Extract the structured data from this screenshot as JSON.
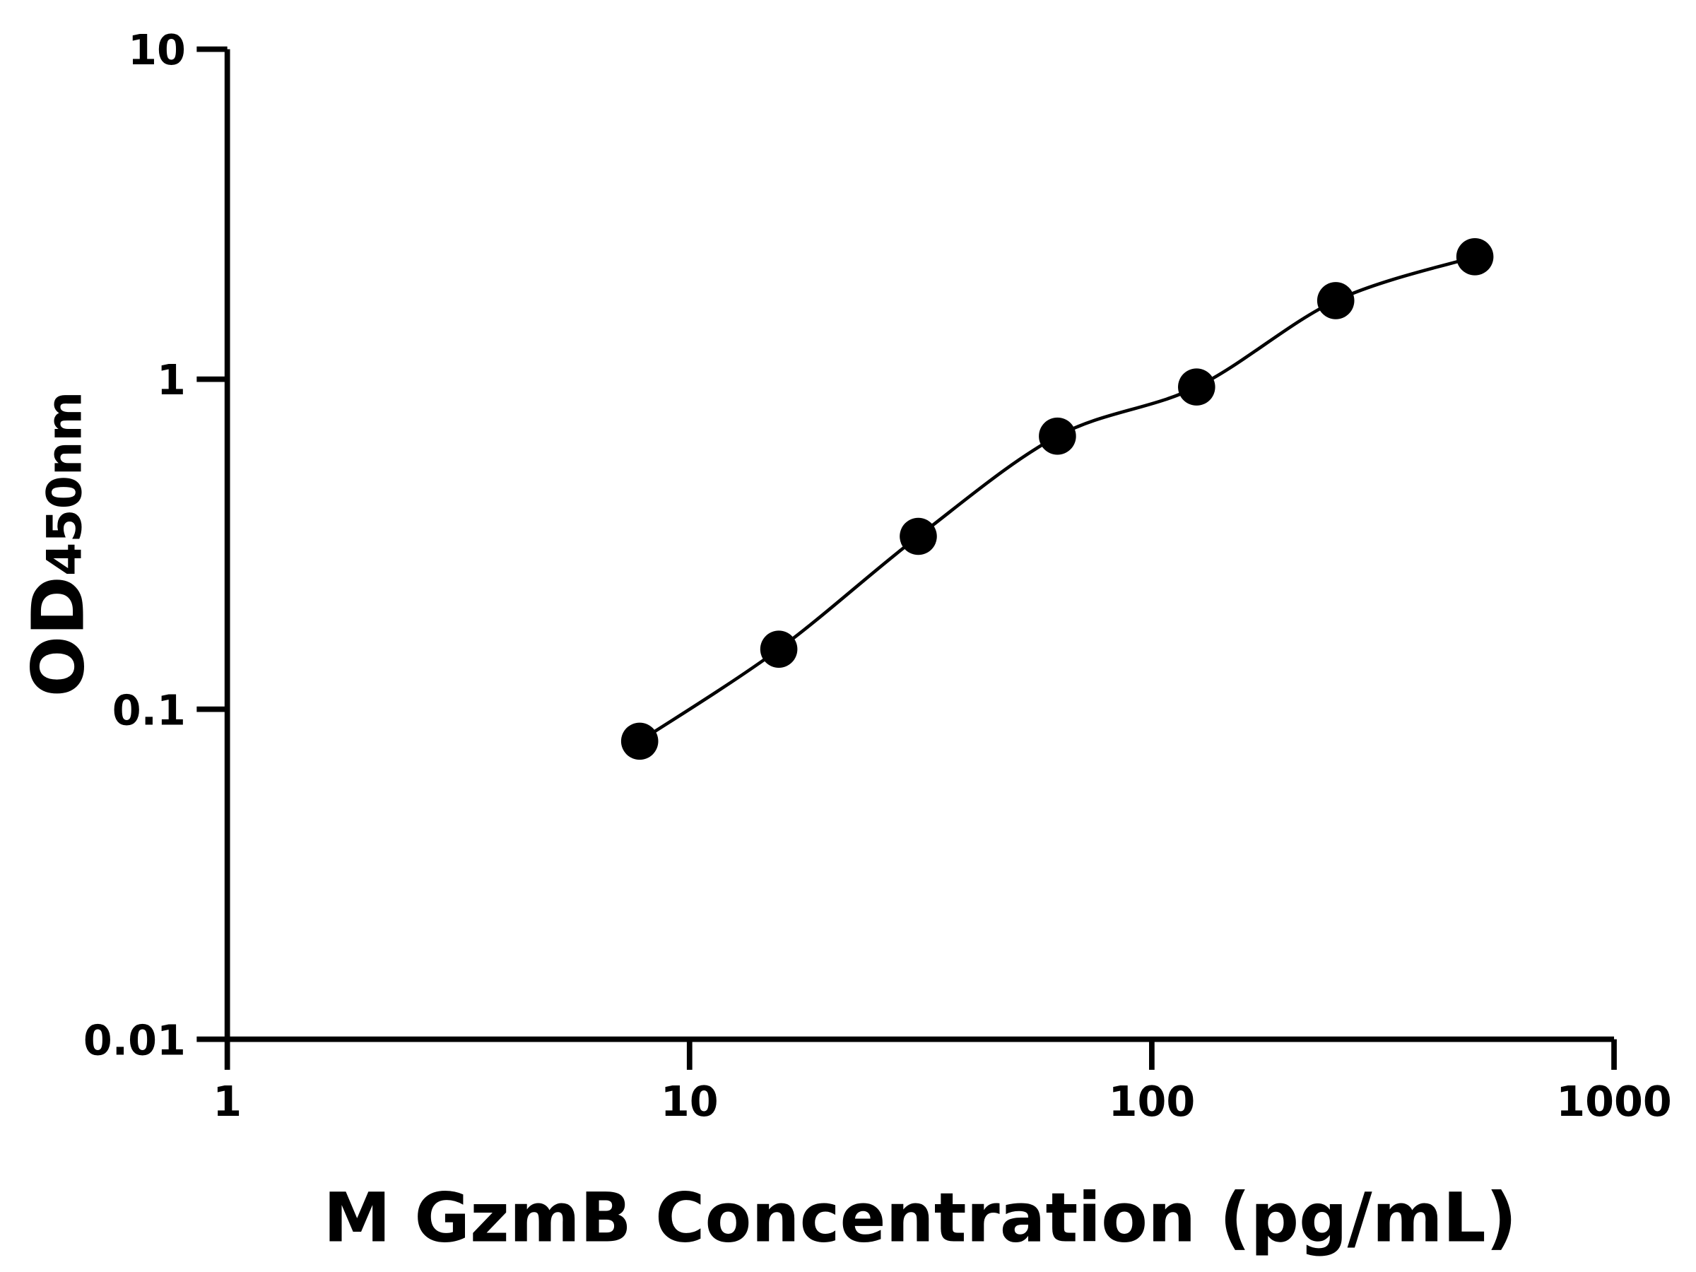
{
  "chart_data": {
    "type": "scatter",
    "title": "",
    "xlabel": "M GzmB Concentration (pg/mL)",
    "ylabel_main": "OD",
    "ylabel_sub": "450nm",
    "x_scale": "log",
    "y_scale": "log",
    "xlim": [
      1,
      1000
    ],
    "ylim": [
      0.01,
      10
    ],
    "x_ticks": [
      1,
      10,
      100,
      1000
    ],
    "x_tick_labels": [
      "1",
      "10",
      "100",
      "1000"
    ],
    "y_ticks": [
      0.01,
      0.1,
      1,
      10
    ],
    "y_tick_labels": [
      "0.01",
      "0.1",
      "1",
      "10"
    ],
    "grid": false,
    "fit_curve": true,
    "series": [
      {
        "x": [
          7.8,
          15.6,
          31.25,
          62.5,
          125,
          250,
          500
        ],
        "y": [
          0.08,
          0.152,
          0.334,
          0.672,
          0.947,
          1.73,
          2.35
        ]
      }
    ],
    "colors": {
      "points": "#000000",
      "line": "#000000",
      "axes": "#000000"
    }
  }
}
